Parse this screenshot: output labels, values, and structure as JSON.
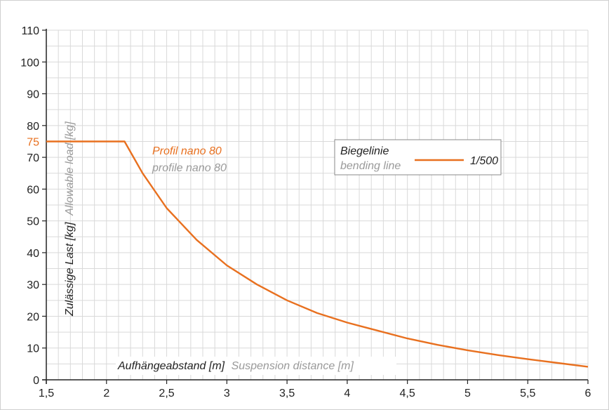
{
  "colors": {
    "curve": "#e8701f",
    "grid": "#d9d9d9",
    "axis": "#222222",
    "primary_text": "#222222",
    "secondary_text": "#9a9a9a",
    "legend_border": "#888888"
  },
  "chart_data": {
    "type": "line",
    "xlim": [
      1.5,
      6
    ],
    "ylim": [
      0,
      110
    ],
    "grid": true,
    "x_ticks": [
      "1,5",
      "2",
      "2,5",
      "3",
      "3,5",
      "4",
      "4,5",
      "5",
      "5,5",
      "6"
    ],
    "x_tick_values": [
      1.5,
      2,
      2.5,
      3,
      3.5,
      4,
      4.5,
      5,
      5.5,
      6
    ],
    "y_ticks": [
      "0",
      "10",
      "20",
      "30",
      "40",
      "50",
      "60",
      "70",
      "80",
      "90",
      "100",
      "110"
    ],
    "y_tick_values": [
      0,
      10,
      20,
      30,
      40,
      50,
      60,
      70,
      80,
      90,
      100,
      110
    ],
    "y_highlight": {
      "label": "75",
      "value": 75
    },
    "ylabel": {
      "primary": "Zulässige Last [kg]",
      "secondary": "Allowable load [kg]"
    },
    "xlabel": {
      "primary": "Aufhängeabstand [m]",
      "secondary": "Suspension distance [m]"
    },
    "series": [
      {
        "name": "Profil nano 80",
        "name_secondary": "profile nano 80",
        "x": [
          1.5,
          2.15,
          2.3,
          2.5,
          2.75,
          3.0,
          3.25,
          3.5,
          3.75,
          4.0,
          4.25,
          4.5,
          4.75,
          5.0,
          5.25,
          5.5,
          5.75,
          6.0
        ],
        "y": [
          75,
          75,
          65,
          54,
          44,
          36,
          30,
          25,
          21,
          18,
          15.5,
          13,
          11,
          9.3,
          7.8,
          6.5,
          5.3,
          4.1
        ]
      }
    ],
    "legend": {
      "title": "Biegelinie",
      "title_secondary": "bending line",
      "entry": "1/500",
      "placement": "top-right"
    }
  }
}
